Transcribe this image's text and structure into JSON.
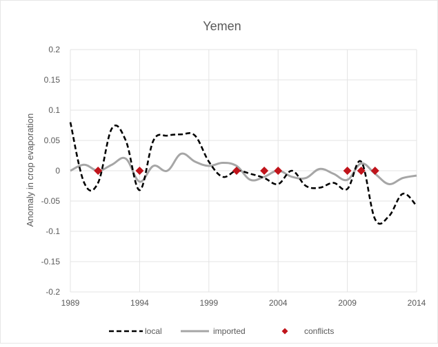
{
  "chart_data": {
    "type": "line",
    "title": "Yemen",
    "xlabel": "",
    "ylabel": "Anomaly in crop evaporation",
    "xlim": [
      1989,
      2014
    ],
    "ylim": [
      -0.2,
      0.2
    ],
    "x_ticks": [
      "1989",
      "1994",
      "1999",
      "2004",
      "2009",
      "2014"
    ],
    "y_ticks": [
      "0.2",
      "0.15",
      "0.1",
      "0.05",
      "0",
      "-0.05",
      "-0.1",
      "-0.15",
      "-0.2"
    ],
    "grid": true,
    "legend_position": "bottom",
    "series": [
      {
        "name": "local",
        "style": "dashed",
        "color": "#000000",
        "x": [
          1989,
          1990,
          1991,
          1992,
          1993,
          1994,
          1995,
          1996,
          1997,
          1998,
          1999,
          2000,
          2001,
          2002,
          2003,
          2004,
          2005,
          2006,
          2007,
          2008,
          2009,
          2010,
          2011,
          2012,
          2013,
          2014
        ],
        "y": [
          0.08,
          -0.02,
          -0.02,
          0.07,
          0.05,
          -0.032,
          0.05,
          0.058,
          0.06,
          0.058,
          0.015,
          -0.01,
          0.0,
          -0.005,
          -0.012,
          -0.022,
          0.0,
          -0.025,
          -0.028,
          -0.02,
          -0.03,
          0.015,
          -0.08,
          -0.075,
          -0.038,
          -0.058
        ]
      },
      {
        "name": "imported",
        "style": "solid",
        "color": "#a6a6a6",
        "x": [
          1989,
          1990,
          1991,
          1992,
          1993,
          1994,
          1995,
          1996,
          1997,
          1998,
          1999,
          2000,
          2001,
          2002,
          2003,
          2004,
          2005,
          2006,
          2007,
          2008,
          2009,
          2010,
          2011,
          2012,
          2013,
          2014
        ],
        "y": [
          0.0,
          0.01,
          0.0,
          0.01,
          0.02,
          -0.018,
          0.008,
          0.0,
          0.028,
          0.015,
          0.008,
          0.013,
          0.008,
          -0.015,
          -0.01,
          0.0,
          -0.01,
          -0.012,
          0.003,
          -0.005,
          -0.015,
          0.012,
          -0.005,
          -0.022,
          -0.012,
          -0.008
        ]
      },
      {
        "name": "conflicts",
        "style": "marker",
        "color": "#c0141b",
        "x": [
          1991,
          1994,
          2001,
          2003,
          2004,
          2009,
          2010,
          2011
        ],
        "y": [
          0,
          0,
          0,
          0,
          0,
          0,
          0,
          0
        ]
      }
    ]
  }
}
